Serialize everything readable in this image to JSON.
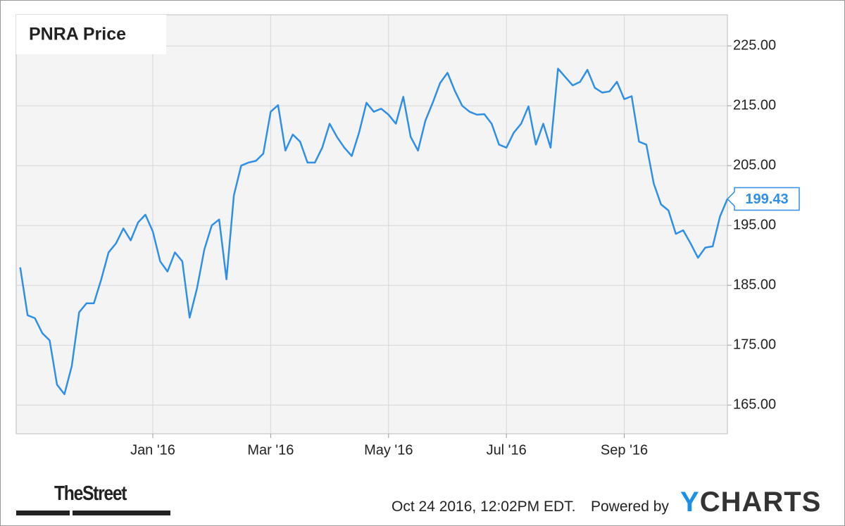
{
  "chart_data": {
    "type": "line",
    "title": "PNRA Price",
    "categories": [
      null,
      null,
      null,
      null,
      null,
      null,
      null,
      null,
      null,
      null,
      null,
      null,
      null,
      null,
      null,
      null,
      null,
      null,
      "Jan '16",
      null,
      null,
      null,
      null,
      null,
      null,
      null,
      null,
      null,
      null,
      null,
      null,
      null,
      null,
      null,
      "Mar '16",
      null,
      null,
      null,
      null,
      null,
      null,
      null,
      null,
      null,
      null,
      null,
      null,
      null,
      null,
      null,
      "May '16",
      null,
      null,
      null,
      null,
      null,
      null,
      null,
      null,
      null,
      null,
      null,
      null,
      null,
      null,
      null,
      "Jul '16",
      null,
      null,
      null,
      null,
      null,
      null,
      null,
      null,
      null,
      null,
      null,
      null,
      null,
      null,
      null,
      "Sep '16",
      null,
      null,
      null,
      null,
      null,
      null,
      null,
      null,
      null,
      null,
      null,
      null,
      null,
      null
    ],
    "series": [
      {
        "color": "#2f8fe6",
        "values": [
          188,
          180,
          179.5,
          177,
          175.8,
          168.4,
          166.8,
          171.5,
          180.5,
          182,
          182,
          186,
          190.5,
          192,
          194.5,
          192.5,
          195.5,
          196.8,
          194,
          189,
          187.3,
          190.5,
          189,
          179.6,
          184.5,
          191,
          195,
          196,
          186,
          200,
          205,
          205.5,
          205.8,
          207,
          214,
          215.1,
          207.5,
          210.2,
          209,
          205.5,
          205.5,
          208,
          212,
          209.8,
          208,
          206.6,
          210.5,
          215.5,
          214,
          214.5,
          213.5,
          212,
          216.5,
          209.8,
          207.5,
          212.5,
          215.5,
          218.8,
          220.5,
          217.5,
          215,
          214,
          213.5,
          213.6,
          212,
          208.5,
          208,
          210.5,
          212,
          214.9,
          208.5,
          212,
          208,
          221.2,
          219.8,
          218.4,
          219,
          221,
          218,
          217.2,
          217.4,
          219,
          216.1,
          216.6,
          209,
          208.5,
          202,
          198.5,
          197.5,
          193.6,
          194.2,
          192,
          189.6,
          191.3,
          191.5,
          196.5,
          199.43
        ]
      }
    ],
    "ylim": [
      160.2,
      230.2
    ],
    "yticks": [
      {
        "value": 165,
        "label": "165.00"
      },
      {
        "value": 175,
        "label": "175.00"
      },
      {
        "value": 185,
        "label": "185.00"
      },
      {
        "value": 195,
        "label": "195.00"
      },
      {
        "value": 205,
        "label": "205.00"
      },
      {
        "value": 215,
        "label": "215.00"
      },
      {
        "value": 225,
        "label": "225.00"
      }
    ],
    "grid": true,
    "publisher": "TheStreet",
    "timestamp": "Oct 24 2016, 12:02PM EDT.",
    "credit": "Powered by",
    "brand": "YCHARTS"
  }
}
